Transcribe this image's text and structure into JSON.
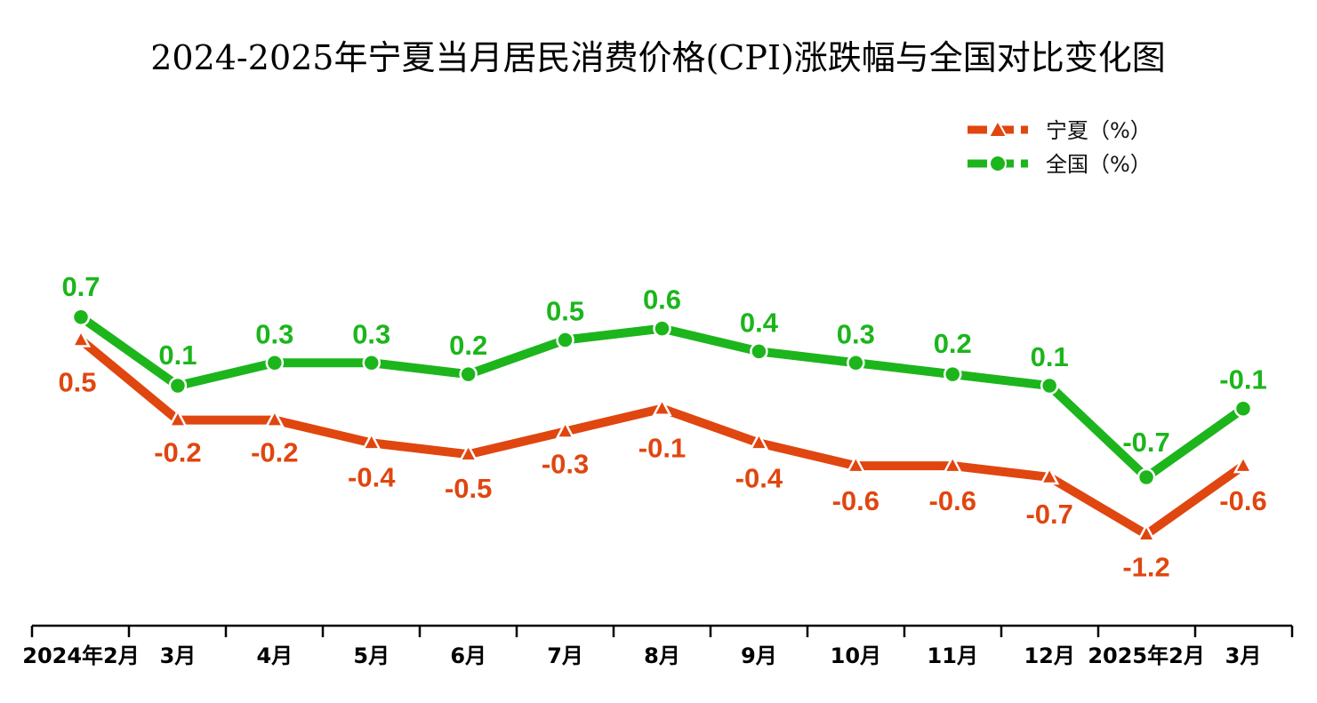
{
  "chart_data": {
    "type": "line",
    "title": "2024-2025年宁夏当月居民消费价格(CPI)涨跌幅与全国对比变化图",
    "categories": [
      "2024年2月",
      "3月",
      "4月",
      "5月",
      "6月",
      "7月",
      "8月",
      "9月",
      "10月",
      "11月",
      "12月",
      "2025年2月",
      "3月"
    ],
    "series": [
      {
        "name": "宁夏（%）",
        "color": "#e0460f",
        "marker": "triangle",
        "values": [
          0.5,
          -0.2,
          -0.2,
          -0.4,
          -0.5,
          -0.3,
          -0.1,
          -0.4,
          -0.6,
          -0.6,
          -0.7,
          -1.2,
          -0.6
        ],
        "labels": [
          "0.5",
          "-0.2",
          "-0.2",
          "-0.4",
          "-0.5",
          "-0.3",
          "-0.1",
          "-0.4",
          "-0.6",
          "-0.6",
          "-0.7",
          "-1.2",
          "-0.6"
        ]
      },
      {
        "name": "全国（%）",
        "color": "#1cb51c",
        "marker": "circle",
        "values": [
          0.7,
          0.1,
          0.3,
          0.3,
          0.2,
          0.5,
          0.6,
          0.4,
          0.3,
          0.2,
          0.1,
          -0.7,
          -0.1
        ],
        "labels": [
          "0.7",
          "0.1",
          "0.3",
          "0.3",
          "0.2",
          "0.5",
          "0.6",
          "0.4",
          "0.3",
          "0.2",
          "0.1",
          "-0.7",
          "-0.1"
        ]
      }
    ],
    "legend_position": "top-right",
    "grid": false,
    "y_axis_visible": false
  }
}
